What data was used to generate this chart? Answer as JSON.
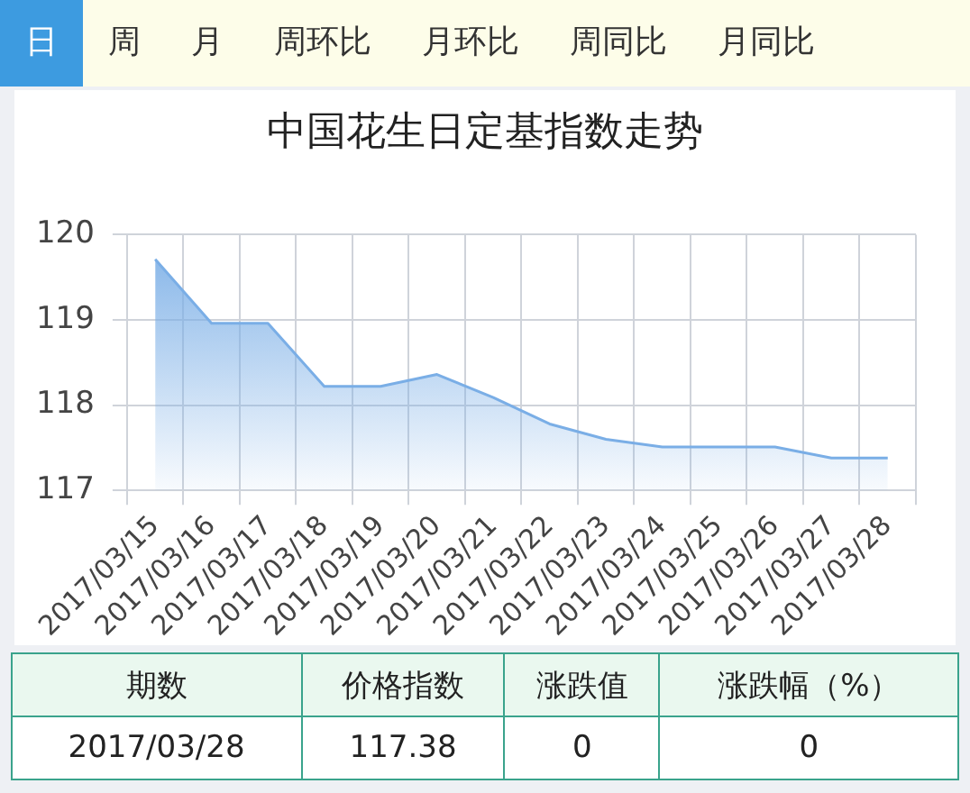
{
  "chart_data": {
    "type": "area",
    "title": "中国花生日定基指数走势",
    "categories": [
      "2017/03/15",
      "2017/03/16",
      "2017/03/17",
      "2017/03/18",
      "2017/03/19",
      "2017/03/20",
      "2017/03/21",
      "2017/03/22",
      "2017/03/23",
      "2017/03/24",
      "2017/03/25",
      "2017/03/26",
      "2017/03/27",
      "2017/03/28"
    ],
    "series": [
      {
        "color": "#7aaee6",
        "values": [
          119.71,
          118.96,
          118.96,
          118.22,
          118.22,
          118.36,
          118.09,
          117.78,
          117.6,
          117.51,
          117.51,
          117.51,
          117.38,
          117.38
        ]
      }
    ],
    "ylim": [
      117,
      120
    ],
    "yticks": [
      117,
      118,
      119,
      120
    ],
    "grid": true,
    "legend": false,
    "marker": "none",
    "annotations": [
      "日",
      "周",
      "月",
      "周环比",
      "月环比",
      "周同比",
      "月同比",
      "期数",
      "价格指数",
      "涨跌值",
      "涨跌幅（%）",
      "2017/03/28",
      "117.38",
      "0",
      "0"
    ]
  }
}
